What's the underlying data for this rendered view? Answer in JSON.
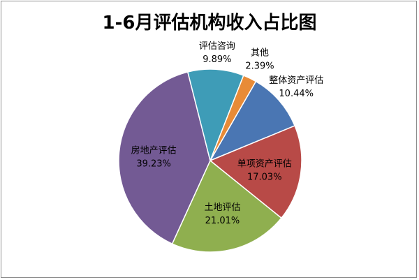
{
  "chart_data": {
    "type": "pie",
    "title": "1-6月评估机构收入占比图",
    "slices": [
      {
        "name": "整体资产评估",
        "value": 10.44,
        "label": "10.44%",
        "color": "#4a76b3"
      },
      {
        "name": "单项资产评估",
        "value": 17.03,
        "label": "17.03%",
        "color": "#b84a47"
      },
      {
        "name": "土地评估",
        "value": 21.01,
        "label": "21.01%",
        "color": "#8faf4f"
      },
      {
        "name": "房地产评估",
        "value": 39.23,
        "label": "39.23%",
        "color": "#735a94"
      },
      {
        "name": "评估咨询",
        "value": 9.89,
        "label": "9.89%",
        "color": "#3e9cb7"
      },
      {
        "name": "其他",
        "value": 2.39,
        "label": "2.39%",
        "color": "#e88b37"
      }
    ],
    "legend": "none"
  }
}
